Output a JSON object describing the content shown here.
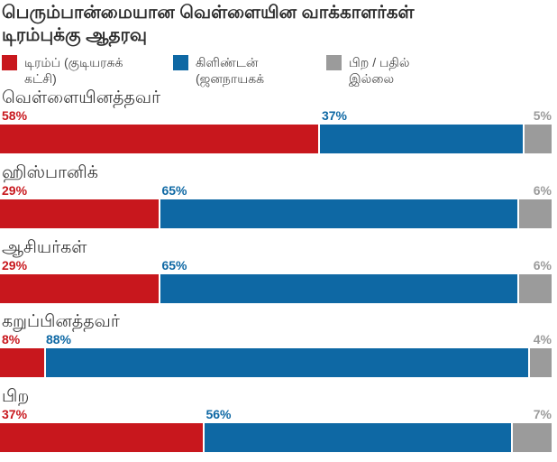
{
  "title": {
    "line1": "பெரும்பான்மையான வெள்ளையின வாக்காளர்கள்",
    "line2": "டிரம்புக்கு ஆதரவு",
    "full": "பெரும்பான்மையான வெள்ளையின வாக்காளர்கள் டிரம்புக்கு ஆதரவு"
  },
  "colors": {
    "trump_red": "#c8171d",
    "clinton_blue": "#0e68a4",
    "neutral_gray": "#9b9b9b",
    "title_text": "#2d2d2d",
    "category_text": "#3b3b3b",
    "legend_text": "#4a4a4a"
  },
  "legend": {
    "items": [
      {
        "series_index": 0,
        "line1": "டிரம்ப் (குடியரசுக்",
        "line2": "கட்சி)"
      },
      {
        "series_index": 1,
        "line1": "கிளிண்டன்",
        "line2": "(ஜனநாயகக்"
      },
      {
        "series_index": 2,
        "line1": "பிற / பதில்",
        "line2": "இல்லை"
      }
    ]
  },
  "chart_data": {
    "type": "bar",
    "orientation": "horizontal-stacked",
    "title": "பெரும்பான்மையான வெள்ளையின வாக்காளர்கள் டிரம்புக்கு ஆதரவு",
    "categories": [
      "வெள்ளையினத்தவர்",
      "ஹிஸ்பானிக்",
      "ஆசியர்கள்",
      "கறுப்பினத்தவர்",
      "பிற"
    ],
    "series": [
      {
        "name": "டிரம்ப் (குடியரசுக் கட்சி)",
        "color": "#c8171d",
        "values": [
          58,
          29,
          29,
          8,
          37
        ]
      },
      {
        "name": "கிளிண்டன் (ஜனநாயகக்",
        "color": "#0e68a4",
        "values": [
          37,
          65,
          65,
          88,
          56
        ]
      },
      {
        "name": "பிற / பதில் இல்லை",
        "color": "#9b9b9b",
        "values": [
          5,
          6,
          6,
          4,
          7
        ]
      }
    ],
    "value_suffix": "%",
    "xlim": [
      0,
      100
    ],
    "grid": false,
    "legend_position": "top",
    "value_labels": "above-segment-start"
  }
}
